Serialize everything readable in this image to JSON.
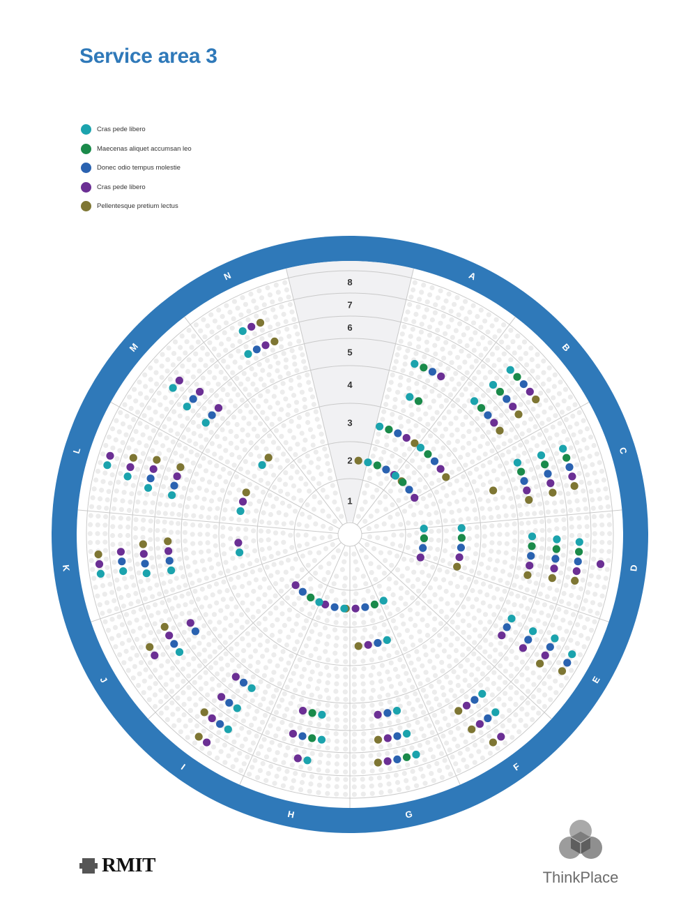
{
  "page": {
    "title": "Service area 3"
  },
  "legend": [
    {
      "label": "Cras pede libero",
      "color": "#1ba3ad",
      "key": "c1"
    },
    {
      "label": "Maecenas aliquet accumsan leo",
      "color": "#1a8a4a",
      "key": "c2"
    },
    {
      "label": "Donec odio tempus molestie",
      "color": "#2a62b0",
      "key": "c3"
    },
    {
      "label": "Cras pede libero",
      "color": "#6b2f94",
      "key": "c4"
    },
    {
      "label": "Pellentesque pretium lectus",
      "color": "#7e7633",
      "key": "c5"
    }
  ],
  "logos": {
    "left": "RMIT",
    "right": "ThinkPlace"
  },
  "chart_data": {
    "type": "radial dot matrix",
    "ring_labels": [
      "1",
      "2",
      "3",
      "4",
      "5",
      "6",
      "7",
      "8"
    ],
    "sector_labels": [
      "A",
      "B",
      "C",
      "D",
      "E",
      "F",
      "G",
      "H",
      "I",
      "J",
      "K",
      "L",
      "M",
      "N"
    ],
    "colors": {
      "c1": "#1ba3ad",
      "c2": "#1a8a4a",
      "c3": "#2a62b0",
      "c4": "#6b2f94",
      "c5": "#7e7633"
    },
    "marker_groups": [
      {
        "sector": "A",
        "ring": 2,
        "sequence": [
          "c5",
          "c1",
          "c2",
          "c3",
          "c4",
          "c5"
        ]
      },
      {
        "sector": "A",
        "ring": 3,
        "sequence": [
          "c1",
          "c2",
          "c3",
          "c4",
          "c5"
        ]
      },
      {
        "sector": "A",
        "ring": 4,
        "sequence": [
          "c1",
          "c2"
        ]
      },
      {
        "sector": "A",
        "ring": 5,
        "sequence": [
          "c1",
          "c2",
          "c3",
          "c4"
        ]
      },
      {
        "sector": "B",
        "ring": 5,
        "sequence": [
          "c1",
          "c2",
          "c3",
          "c4",
          "c5"
        ]
      },
      {
        "sector": "B",
        "ring": 6,
        "sequence": [
          "c1",
          "c2",
          "c3",
          "c4",
          "c5"
        ]
      },
      {
        "sector": "B",
        "ring": 7,
        "sequence": [
          "c1",
          "c2",
          "c3",
          "c4",
          "c5"
        ]
      },
      {
        "sector": "B",
        "ring": 2,
        "sequence": [
          "c1",
          "c2",
          "c3",
          "c4"
        ]
      },
      {
        "sector": "B",
        "ring": 3,
        "sequence": [
          "c1",
          "c2",
          "c3",
          "c4",
          "c5"
        ]
      },
      {
        "sector": "C",
        "ring": 4,
        "sequence": [
          "c5"
        ]
      },
      {
        "sector": "C",
        "ring": 5,
        "sequence": [
          "c1",
          "c2",
          "c3",
          "c4",
          "c5"
        ]
      },
      {
        "sector": "C",
        "ring": 6,
        "sequence": [
          "c1",
          "c2",
          "c3",
          "c4",
          "c5"
        ]
      },
      {
        "sector": "C",
        "ring": 7,
        "sequence": [
          "c1",
          "c2",
          "c3",
          "c4",
          "c5"
        ]
      },
      {
        "sector": "D",
        "ring": 2,
        "sequence": [
          "c1",
          "c2",
          "c3",
          "c4"
        ]
      },
      {
        "sector": "D",
        "ring": 3,
        "sequence": [
          "c1",
          "c2",
          "c3",
          "c4",
          "c5"
        ]
      },
      {
        "sector": "D",
        "ring": 5,
        "sequence": [
          "c1",
          "c2",
          "c3",
          "c4",
          "c5"
        ]
      },
      {
        "sector": "D",
        "ring": 6,
        "sequence": [
          "c1",
          "c2",
          "c3",
          "c4",
          "c5"
        ]
      },
      {
        "sector": "D",
        "ring": 7,
        "sequence": [
          "c1",
          "c2",
          "c3",
          "c4",
          "c5"
        ]
      },
      {
        "sector": "D",
        "ring": 8,
        "sequence": [
          "c4"
        ]
      },
      {
        "sector": "E",
        "ring": 5,
        "sequence": [
          "c1",
          "c3",
          "c4"
        ]
      },
      {
        "sector": "E",
        "ring": 6,
        "sequence": [
          "c1",
          "c3",
          "c4"
        ]
      },
      {
        "sector": "E",
        "ring": 7,
        "sequence": [
          "c1",
          "c3",
          "c4",
          "c5"
        ]
      },
      {
        "sector": "E",
        "ring": 8,
        "sequence": [
          "c1",
          "c3",
          "c5"
        ]
      },
      {
        "sector": "F",
        "ring": 6,
        "sequence": [
          "c1",
          "c3",
          "c4",
          "c5"
        ]
      },
      {
        "sector": "F",
        "ring": 7,
        "sequence": [
          "c1",
          "c3",
          "c4",
          "c5"
        ]
      },
      {
        "sector": "F",
        "ring": 8,
        "sequence": [
          "c4",
          "c5"
        ]
      },
      {
        "sector": "G",
        "ring": 3,
        "sequence": [
          "c1",
          "c3",
          "c4",
          "c5"
        ]
      },
      {
        "sector": "G",
        "ring": 2,
        "sequence": [
          "c1",
          "c2",
          "c3",
          "c4",
          "c5"
        ]
      },
      {
        "sector": "G",
        "ring": 5,
        "sequence": [
          "c1",
          "c3",
          "c4"
        ]
      },
      {
        "sector": "G",
        "ring": 6,
        "sequence": [
          "c1",
          "c3",
          "c4",
          "c5"
        ]
      },
      {
        "sector": "G",
        "ring": 7,
        "sequence": [
          "c1",
          "c2",
          "c3",
          "c4",
          "c5"
        ]
      },
      {
        "sector": "H",
        "ring": 2,
        "sequence": [
          "c1",
          "c3",
          "c4"
        ]
      },
      {
        "sector": "H",
        "ring": 5,
        "sequence": [
          "c1",
          "c2",
          "c4"
        ]
      },
      {
        "sector": "H",
        "ring": 6,
        "sequence": [
          "c1",
          "c2",
          "c3",
          "c4"
        ]
      },
      {
        "sector": "H",
        "ring": 7,
        "sequence": [
          "c1",
          "c4"
        ]
      },
      {
        "sector": "I",
        "ring": 2,
        "sequence": [
          "c1",
          "c2",
          "c3",
          "c4"
        ]
      },
      {
        "sector": "I",
        "ring": 5,
        "sequence": [
          "c1",
          "c3",
          "c4"
        ]
      },
      {
        "sector": "I",
        "ring": 6,
        "sequence": [
          "c1",
          "c3",
          "c4"
        ]
      },
      {
        "sector": "I",
        "ring": 7,
        "sequence": [
          "c1",
          "c3",
          "c4",
          "c5"
        ]
      },
      {
        "sector": "I",
        "ring": 8,
        "sequence": [
          "c4",
          "c5"
        ]
      },
      {
        "sector": "J",
        "ring": 5,
        "sequence": [
          "c3",
          "c4"
        ]
      },
      {
        "sector": "J",
        "ring": 6,
        "sequence": [
          "c1",
          "c3",
          "c4",
          "c5"
        ]
      },
      {
        "sector": "J",
        "ring": 7,
        "sequence": [
          "c4",
          "c5"
        ]
      },
      {
        "sector": "K",
        "ring": 3,
        "sequence": [
          "c1",
          "c4"
        ]
      },
      {
        "sector": "K",
        "ring": 5,
        "sequence": [
          "c1",
          "c3",
          "c4",
          "c5"
        ]
      },
      {
        "sector": "K",
        "ring": 6,
        "sequence": [
          "c1",
          "c3",
          "c4",
          "c5"
        ]
      },
      {
        "sector": "K",
        "ring": 7,
        "sequence": [
          "c1",
          "c3",
          "c4"
        ]
      },
      {
        "sector": "K",
        "ring": 8,
        "sequence": [
          "c1",
          "c4",
          "c5"
        ]
      },
      {
        "sector": "L",
        "ring": 3,
        "sequence": [
          "c1",
          "c4",
          "c5"
        ]
      },
      {
        "sector": "L",
        "ring": 5,
        "sequence": [
          "c1",
          "c3",
          "c4",
          "c5"
        ]
      },
      {
        "sector": "L",
        "ring": 6,
        "sequence": [
          "c1",
          "c3",
          "c4",
          "c5"
        ]
      },
      {
        "sector": "L",
        "ring": 7,
        "sequence": [
          "c1",
          "c4",
          "c5"
        ]
      },
      {
        "sector": "L",
        "ring": 8,
        "sequence": [
          "c1",
          "c4"
        ]
      },
      {
        "sector": "M",
        "ring": 3,
        "sequence": [
          "c1",
          "c5"
        ]
      },
      {
        "sector": "M",
        "ring": 5,
        "sequence": [
          "c1",
          "c3",
          "c4"
        ]
      },
      {
        "sector": "M",
        "ring": 6,
        "sequence": [
          "c1",
          "c3",
          "c4"
        ]
      },
      {
        "sector": "M",
        "ring": 7,
        "sequence": [
          "c1",
          "c4"
        ]
      },
      {
        "sector": "N",
        "ring": 6,
        "sequence": [
          "c1",
          "c3",
          "c4",
          "c5"
        ]
      },
      {
        "sector": "N",
        "ring": 7,
        "sequence": [
          "c1",
          "c4",
          "c5"
        ]
      }
    ],
    "legend_position": "top-left"
  }
}
